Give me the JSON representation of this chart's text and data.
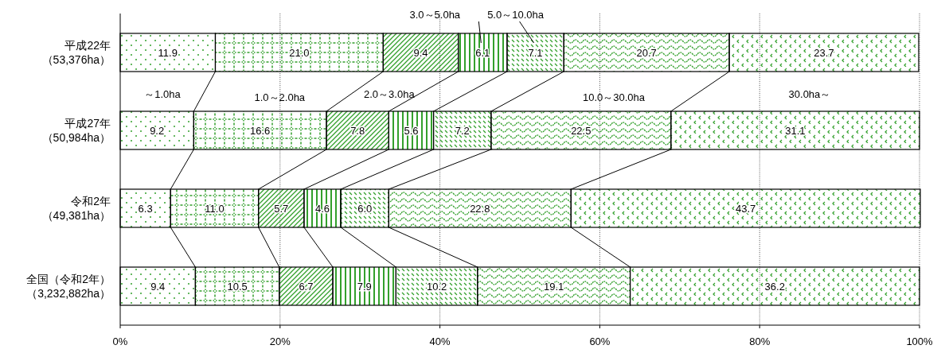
{
  "chart_data": {
    "type": "bar",
    "orientation": "horizontal",
    "stacked": true,
    "categories": [
      "平成22年（53,376ha）",
      "平成27年（50,984ha）",
      "令和2年（49,381ha）",
      "全国（令和2年）（3,232,882ha）"
    ],
    "series": [
      {
        "name": "～1.0ha",
        "color": "#33a02c",
        "values": [
          11.9,
          9.2,
          6.3,
          9.4
        ],
        "value_labels": [
          "11.9",
          "9.2",
          "6.3",
          "9.4"
        ]
      },
      {
        "name": "1.0～2.0ha",
        "color": "#33a02c",
        "values": [
          21.0,
          16.6,
          11.0,
          10.5
        ],
        "value_labels": [
          "21.0",
          "16.6",
          "11.0",
          "10.5"
        ]
      },
      {
        "name": "2.0～3.0ha",
        "color": "#33a02c",
        "values": [
          9.4,
          7.8,
          5.7,
          6.7
        ],
        "value_labels": [
          "9.4",
          "7.8",
          "5.7",
          "6.7"
        ]
      },
      {
        "name": "3.0～5.0ha",
        "color": "#33a02c",
        "values": [
          6.1,
          5.6,
          4.6,
          7.9
        ],
        "value_labels": [
          "6.1",
          "5.6",
          "4.6",
          "7.9"
        ]
      },
      {
        "name": "5.0～10.0ha",
        "color": "#33a02c",
        "values": [
          7.1,
          7.2,
          6.0,
          10.2
        ],
        "value_labels": [
          "7.1",
          "7.2",
          "6.0",
          "10.2"
        ]
      },
      {
        "name": "10.0～30.0ha",
        "color": "#33a02c",
        "values": [
          20.7,
          22.5,
          22.8,
          19.1
        ],
        "value_labels": [
          "20.7",
          "22.5",
          "22.8",
          "19.1"
        ]
      },
      {
        "name": "30.0ha～",
        "color": "#33a02c",
        "values": [
          23.7,
          31.1,
          43.7,
          36.2
        ],
        "value_labels": [
          "23.7",
          "31.1",
          "43.7",
          "36.2"
        ]
      }
    ],
    "xlim": [
      0,
      100
    ],
    "xticks": [
      {
        "value": 0,
        "label": "0%"
      },
      {
        "value": 20,
        "label": "20%"
      },
      {
        "value": 40,
        "label": "40%"
      },
      {
        "value": 60,
        "label": "60%"
      },
      {
        "value": 80,
        "label": "80%"
      },
      {
        "value": 100,
        "label": "100%"
      }
    ],
    "grid": "x",
    "legend": false
  }
}
